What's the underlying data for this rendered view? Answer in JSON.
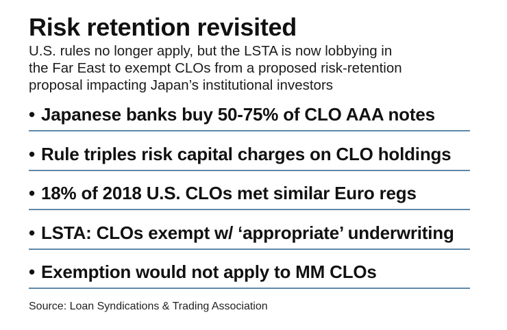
{
  "title": "Risk retention revisited",
  "subtitle_lines": [
    "U.S. rules no longer apply, but the LSTA is now lobbying in",
    "the Far East to exempt CLOs from a proposed risk-retention",
    "proposal impacting Japan’s institutional investors"
  ],
  "bullet_glyph": "•",
  "bullets": [
    "Japanese banks buy 50-75% of CLO AAA notes",
    "Rule triples risk capital charges on CLO holdings",
    "18% of 2018 U.S. CLOs met similar Euro regs",
    "LSTA: CLOs exempt w/ ‘appropriate’ underwriting",
    "Exemption would not apply to MM CLOs"
  ],
  "source": "Source: Loan Syndications & Trading Association",
  "colors": {
    "rule_line": "#5f87a8",
    "text": "#111111"
  }
}
